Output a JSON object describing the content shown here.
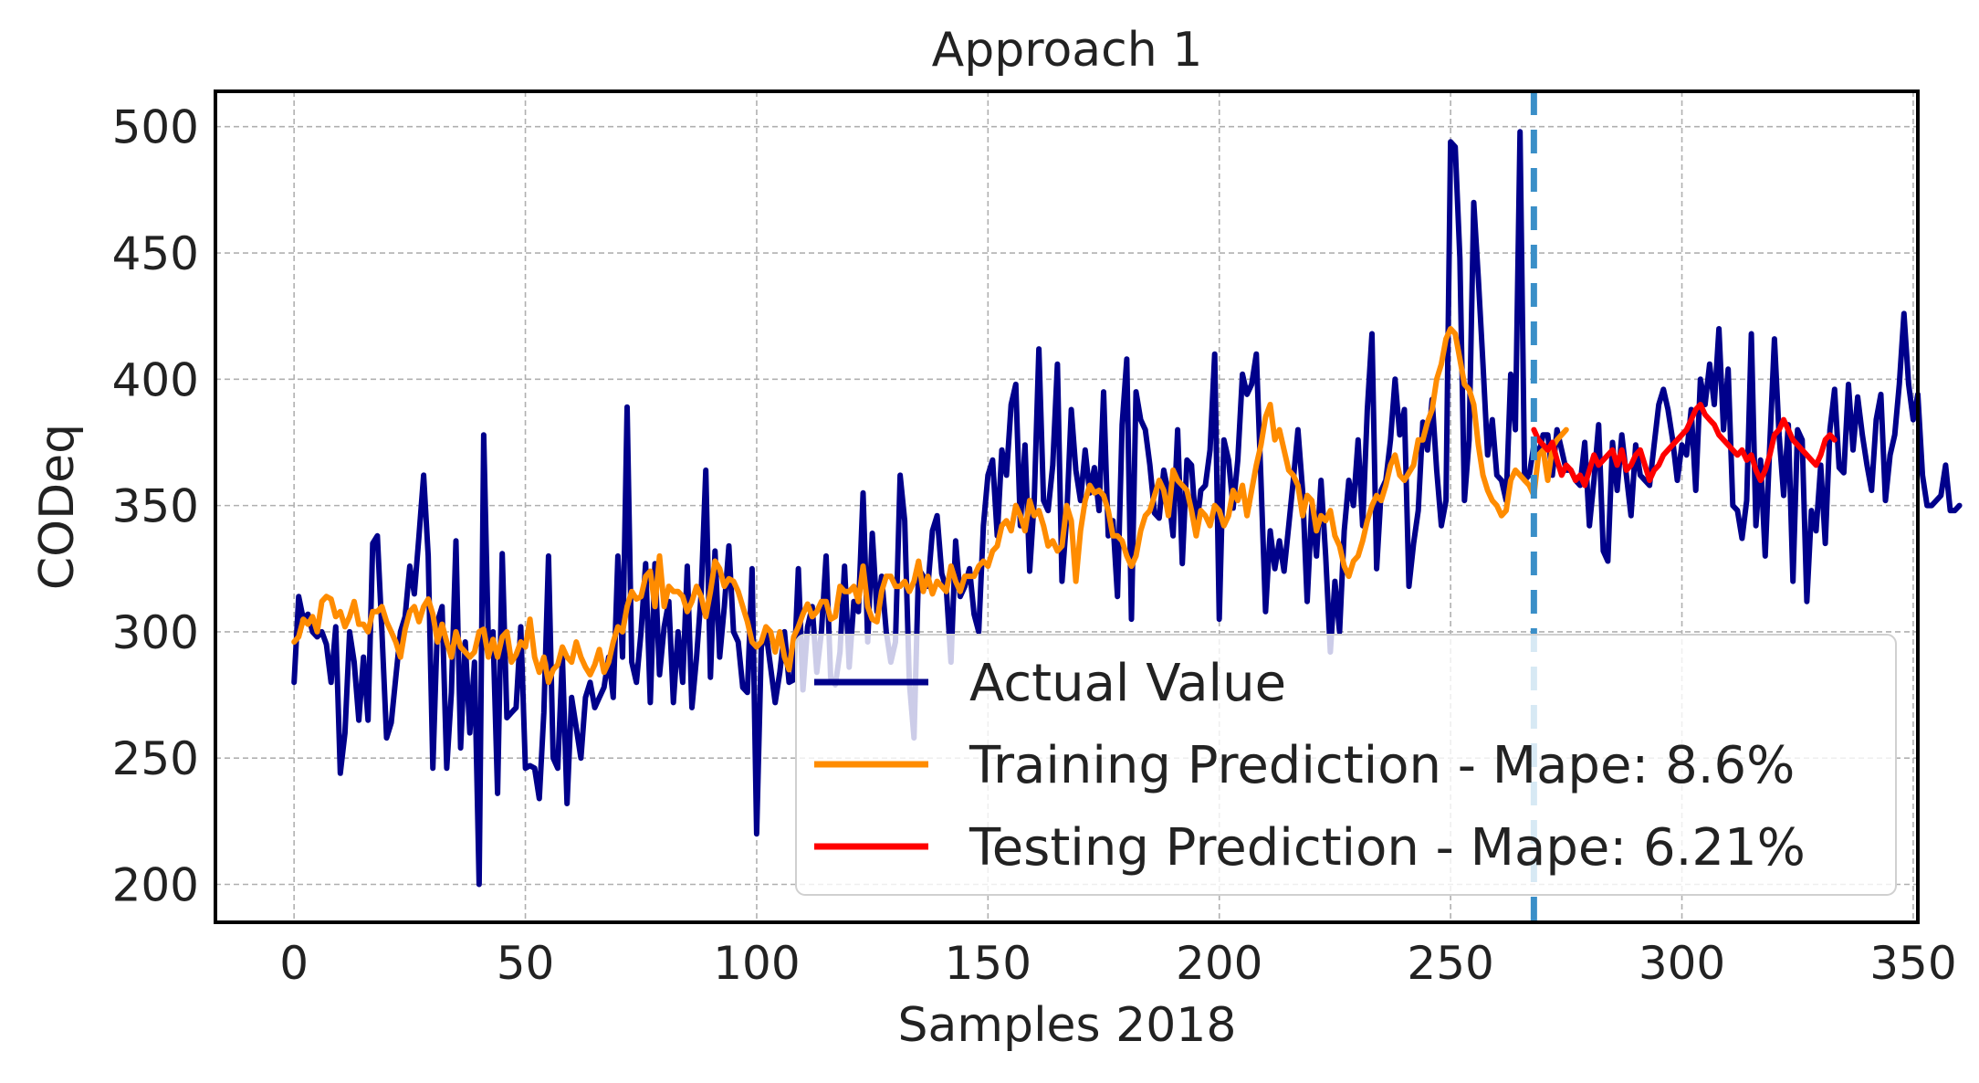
{
  "chart_data": {
    "type": "line",
    "title": "Approach 1",
    "xlabel": "Samples 2018",
    "ylabel": "CODeq",
    "xlim": [
      -17,
      351
    ],
    "ylim": [
      185,
      514
    ],
    "x_ticks": [
      "0",
      "50",
      "100",
      "150",
      "200",
      "250",
      "300",
      "350"
    ],
    "y_ticks": [
      "200",
      "250",
      "300",
      "350",
      "400",
      "450",
      "500"
    ],
    "grid": true,
    "legend_position": "lower-right",
    "split_x": 268,
    "colors": {
      "actual": "#00008b",
      "training": "#ff8c00",
      "testing": "#ff0000",
      "split": "#3a8fc8",
      "grid": "#b0b0b0"
    },
    "series": [
      {
        "name": "Actual Value",
        "key": "actual",
        "start_x": 0,
        "values": [
          280,
          314,
          305,
          307,
          300,
          298,
          300,
          295,
          280,
          302,
          244,
          260,
          300,
          288,
          265,
          290,
          265,
          335,
          338,
          300,
          258,
          264,
          282,
          300,
          306,
          326,
          315,
          338,
          362,
          330,
          246,
          304,
          310,
          246,
          276,
          336,
          254,
          296,
          260,
          288,
          200,
          378,
          296,
          300,
          236,
          331,
          266,
          268,
          270,
          302,
          246,
          247,
          246,
          234,
          268,
          330,
          250,
          246,
          290,
          232,
          274,
          262,
          250,
          274,
          280,
          270,
          274,
          278,
          290,
          274,
          330,
          290,
          389,
          288,
          280,
          300,
          327,
          272,
          327,
          283,
          302,
          312,
          272,
          300,
          280,
          326,
          270,
          290,
          315,
          364,
          282,
          332,
          290,
          310,
          334,
          300,
          296,
          278,
          276,
          325,
          220,
          294,
          300,
          286,
          272,
          284,
          300,
          280,
          281,
          325,
          277,
          302,
          310,
          284,
          300,
          330,
          282,
          279,
          292,
          326,
          286,
          312,
          308,
          355,
          296,
          339,
          308,
          322,
          300,
          288,
          296,
          362,
          344,
          280,
          258,
          325,
          322,
          318,
          340,
          346,
          323,
          317,
          288,
          336,
          314,
          318,
          325,
          307,
          300,
          342,
          362,
          368,
          338,
          372,
          362,
          390,
          398,
          342,
          374,
          324,
          352,
          412,
          352,
          348,
          366,
          406,
          320,
          345,
          388,
          364,
          352,
          372,
          355,
          365,
          348,
          395,
          338,
          344,
          314,
          382,
          408,
          305,
          395,
          384,
          380,
          366,
          347,
          345,
          364,
          355,
          338,
          380,
          327,
          368,
          366,
          340,
          356,
          358,
          372,
          410,
          305,
          376,
          368,
          349,
          368,
          402,
          394,
          398,
          410,
          360,
          308,
          340,
          325,
          336,
          324,
          342,
          360,
          380,
          356,
          312,
          350,
          330,
          360,
          330,
          292,
          320,
          300,
          340,
          360,
          350,
          376,
          342,
          388,
          418,
          325,
          356,
          360,
          376,
          400,
          378,
          388,
          318,
          335,
          348,
          383,
          372,
          392,
          364,
          342,
          352,
          494,
          492,
          448,
          352,
          376,
          470,
          440,
          406,
          370,
          384,
          362,
          360,
          352,
          402,
          380,
          498,
          360,
          362,
          374,
          370,
          378,
          378,
          362,
          380,
          372,
          364,
          364,
          360,
          358,
          375,
          342,
          360,
          382,
          332,
          328,
          375,
          356,
          378,
          362,
          346,
          374,
          362,
          360,
          358,
          374,
          390,
          396,
          388,
          376,
          360,
          374,
          370,
          388,
          356,
          400,
          390,
          406,
          390,
          420,
          380,
          404,
          350,
          348,
          337,
          352,
          418,
          342,
          368,
          330,
          374,
          416,
          378,
          354,
          382,
          320,
          380,
          376,
          312,
          348,
          340,
          366,
          335,
          380,
          396,
          365,
          363,
          398,
          372,
          393,
          378,
          366,
          356,
          384,
          394,
          352,
          370,
          378,
          398,
          426,
          398,
          384,
          394,
          362,
          350,
          350,
          352,
          354,
          366,
          348,
          348,
          350
        ]
      },
      {
        "name": "Training Prediction - Mape: 8.6%",
        "key": "training",
        "start_x": 0,
        "values": [
          296,
          298,
          305,
          303,
          306,
          300,
          312,
          314,
          313,
          306,
          308,
          302,
          306,
          312,
          303,
          303,
          300,
          308,
          308,
          310,
          304,
          300,
          296,
          290,
          301,
          308,
          310,
          304,
          310,
          313,
          307,
          296,
          303,
          296,
          290,
          300,
          294,
          292,
          290,
          292,
          300,
          301,
          290,
          297,
          290,
          298,
          300,
          288,
          291,
          296,
          294,
          305,
          290,
          284,
          290,
          280,
          285,
          287,
          294,
          290,
          288,
          296,
          290,
          286,
          283,
          287,
          293,
          284,
          288,
          296,
          302,
          300,
          310,
          316,
          313,
          314,
          322,
          324,
          310,
          330,
          310,
          318,
          316,
          316,
          314,
          308,
          312,
          318,
          314,
          306,
          316,
          328,
          325,
          318,
          321,
          320,
          316,
          310,
          304,
          296,
          294,
          296,
          302,
          300,
          292,
          300,
          290,
          285,
          298,
          302,
          307,
          311,
          306,
          308,
          312,
          312,
          305,
          306,
          318,
          316,
          316,
          318,
          312,
          326,
          310,
          305,
          304,
          316,
          322,
          322,
          318,
          318,
          320,
          316,
          320,
          328,
          316,
          322,
          315,
          320,
          318,
          316,
          326,
          320,
          316,
          322,
          322,
          322,
          326,
          328,
          326,
          332,
          334,
          342,
          344,
          340,
          350,
          346,
          340,
          352,
          346,
          348,
          342,
          334,
          336,
          332,
          334,
          350,
          344,
          320,
          340,
          352,
          358,
          355,
          356,
          354,
          348,
          338,
          338,
          336,
          330,
          326,
          330,
          340,
          346,
          348,
          354,
          360,
          356,
          346,
          364,
          360,
          358,
          356,
          348,
          338,
          348,
          346,
          342,
          350,
          348,
          342,
          346,
          356,
          352,
          358,
          346,
          356,
          366,
          374,
          385,
          390,
          376,
          380,
          372,
          364,
          362,
          358,
          346,
          354,
          352,
          340,
          346,
          344,
          348,
          338,
          334,
          326,
          322,
          328,
          330,
          336,
          344,
          350,
          354,
          352,
          358,
          366,
          370,
          362,
          360,
          363,
          366,
          376,
          376,
          383,
          388,
          400,
          406,
          416,
          420,
          418,
          408,
          398,
          396,
          390,
          374,
          362,
          356,
          352,
          350,
          346,
          348,
          360,
          364,
          362,
          360,
          358,
          354,
          370,
          372,
          360,
          373,
          376,
          378,
          380
        ]
      },
      {
        "name": "Testing Prediction - Mape: 6.21%",
        "key": "testing",
        "start_x": 268,
        "values": [
          380,
          376,
          374,
          372,
          375,
          368,
          362,
          366,
          364,
          360,
          362,
          358,
          364,
          370,
          366,
          368,
          370,
          372,
          366,
          372,
          364,
          366,
          370,
          372,
          366,
          360,
          364,
          366,
          370,
          372,
          374,
          376,
          378,
          380,
          384,
          388,
          390,
          386,
          384,
          382,
          378,
          376,
          374,
          372,
          370,
          372,
          368,
          370,
          364,
          360,
          364,
          370,
          378,
          380,
          384,
          380,
          376,
          374,
          372,
          370,
          368,
          366,
          370,
          376,
          378,
          376
        ]
      }
    ]
  }
}
